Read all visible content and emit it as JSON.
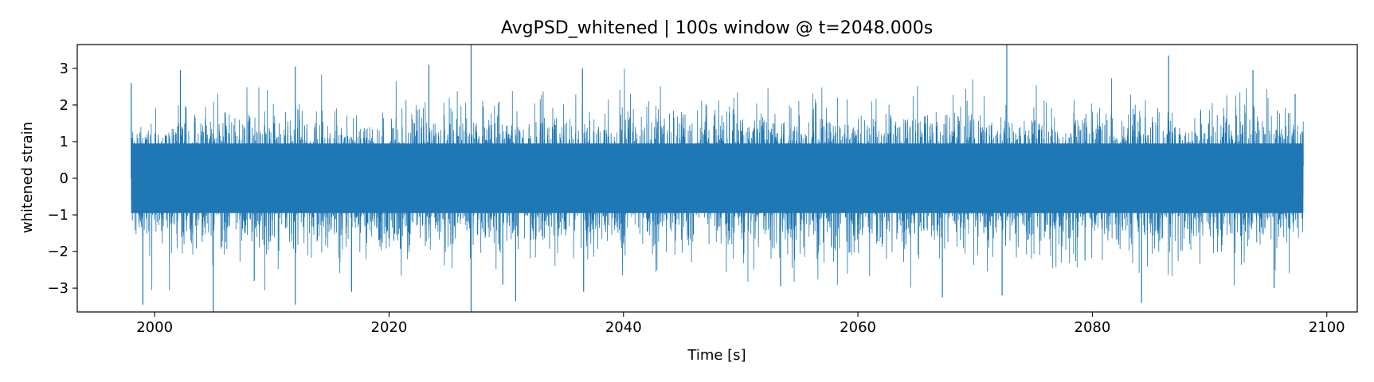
{
  "chart_data": {
    "type": "line",
    "title": "AvgPSD_whitened | 100s window @ t=2048.000s",
    "xlabel": "Time [s]",
    "ylabel": "whitened strain",
    "xlim": [
      1993.4,
      2102.6
    ],
    "ylim": [
      -3.65,
      3.65
    ],
    "xticks": [
      2000,
      2020,
      2040,
      2060,
      2080,
      2100
    ],
    "yticks": [
      3,
      2,
      1,
      0,
      -1,
      -2,
      -3
    ],
    "xtick_labels": [
      "2000",
      "2020",
      "2040",
      "2060",
      "2080",
      "2100"
    ],
    "ytick_labels": [
      "3",
      "2",
      "1",
      "0",
      "−1",
      "−2",
      "−3"
    ],
    "grid": false,
    "series": [
      {
        "color": "#1f77b4",
        "x_start": 1998.0,
        "x_end": 2098.0,
        "typical_range": [
          -1.0,
          1.0
        ],
        "spikes": [
          {
            "x": 1998.0,
            "y": 2.6
          },
          {
            "x": 1999.0,
            "y": -3.45
          },
          {
            "x": 2002.2,
            "y": 2.95
          },
          {
            "x": 2005.0,
            "y": -3.65
          },
          {
            "x": 2008.5,
            "y": -2.8
          },
          {
            "x": 2012.0,
            "y": 3.05
          },
          {
            "x": 2012.0,
            "y": -3.45
          },
          {
            "x": 2016.8,
            "y": -3.1
          },
          {
            "x": 2023.4,
            "y": 3.1
          },
          {
            "x": 2027.0,
            "y": 3.65
          },
          {
            "x": 2027.0,
            "y": -3.65
          },
          {
            "x": 2029.7,
            "y": -2.9
          },
          {
            "x": 2030.8,
            "y": -3.35
          },
          {
            "x": 2036.5,
            "y": 3.0
          },
          {
            "x": 2036.6,
            "y": -3.1
          },
          {
            "x": 2053.4,
            "y": -2.95
          },
          {
            "x": 2067.2,
            "y": -3.25
          },
          {
            "x": 2072.3,
            "y": -3.2
          },
          {
            "x": 2072.7,
            "y": 3.65
          },
          {
            "x": 2084.2,
            "y": -3.4
          },
          {
            "x": 2086.5,
            "y": 3.35
          },
          {
            "x": 2093.7,
            "y": 2.95
          },
          {
            "x": 2095.5,
            "y": -3.0
          },
          {
            "x": 2097.3,
            "y": 2.3
          }
        ]
      }
    ]
  }
}
